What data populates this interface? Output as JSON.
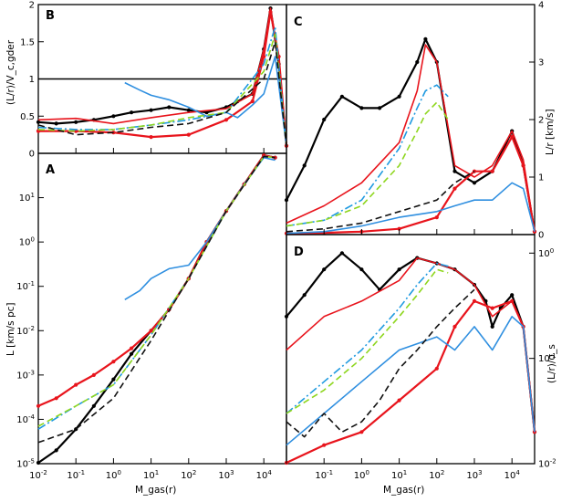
{
  "figure_title": "",
  "colors": {
    "black": "#000000",
    "red": "#e8141c",
    "blue": "#2f8fe0",
    "cyan_dash": "#1f9ae0",
    "green_dash": "#8ed61e",
    "black_dash": "#111111"
  },
  "chart_data": [
    {
      "panel": "B",
      "type": "line",
      "title": "",
      "xlabel": "",
      "ylabel": "(L/r)/V_c,gder",
      "xscale": "log",
      "xlim": [
        0.01,
        40000
      ],
      "ylim": [
        0,
        2
      ],
      "yticks": [
        "0",
        "0.5",
        "1",
        "1.5",
        "2"
      ],
      "reference_line": 1,
      "series": [
        {
          "name": "black-dots",
          "style": "solid-dots",
          "color": "#000000",
          "x": [
            0.01,
            0.03,
            0.1,
            0.3,
            1,
            3,
            10,
            30,
            100,
            300,
            1000,
            2000,
            5000,
            10000,
            15000,
            25000,
            40000
          ],
          "y": [
            0.42,
            0.4,
            0.42,
            0.45,
            0.5,
            0.55,
            0.58,
            0.62,
            0.58,
            0.55,
            0.62,
            0.7,
            0.8,
            1.4,
            1.95,
            1.2,
            0.1
          ]
        },
        {
          "name": "red-solid",
          "style": "solid",
          "color": "#e8141c",
          "x": [
            0.01,
            0.1,
            1,
            10,
            100,
            1000,
            5000,
            10000,
            15000,
            25000,
            40000
          ],
          "y": [
            0.45,
            0.47,
            0.4,
            0.48,
            0.55,
            0.6,
            0.8,
            1.4,
            1.95,
            1.3,
            0.1
          ]
        },
        {
          "name": "red-dots",
          "style": "solid-dots",
          "color": "#e8141c",
          "x": [
            0.01,
            0.1,
            1,
            10,
            100,
            1000,
            5000,
            10000,
            15000,
            25000,
            40000
          ],
          "y": [
            0.3,
            0.3,
            0.28,
            0.22,
            0.25,
            0.45,
            0.7,
            1.3,
            1.9,
            1.3,
            0.1
          ]
        },
        {
          "name": "blue-solid",
          "style": "solid",
          "color": "#2f8fe0",
          "x": [
            2,
            5,
            10,
            30,
            100,
            300,
            1000,
            2000,
            5000,
            10000,
            20000,
            40000
          ],
          "y": [
            0.95,
            0.85,
            0.78,
            0.72,
            0.62,
            0.5,
            0.55,
            0.48,
            0.65,
            0.8,
            1.3,
            0.1
          ]
        },
        {
          "name": "cyan-dashdot",
          "style": "dashdot",
          "color": "#1f9ae0",
          "x": [
            0.01,
            0.1,
            1,
            10,
            100,
            1000,
            10000,
            20000,
            40000
          ],
          "y": [
            0.35,
            0.32,
            0.32,
            0.38,
            0.45,
            0.55,
            1.2,
            1.7,
            0.1
          ]
        },
        {
          "name": "green-dash",
          "style": "dash",
          "color": "#8ed61e",
          "x": [
            0.01,
            0.1,
            1,
            10,
            100,
            1000,
            10000,
            20000,
            40000
          ],
          "y": [
            0.32,
            0.3,
            0.32,
            0.38,
            0.48,
            0.55,
            1.1,
            1.6,
            0.1
          ]
        },
        {
          "name": "black-dash",
          "style": "dash",
          "color": "#111111",
          "x": [
            0.01,
            0.1,
            1,
            10,
            100,
            1000,
            10000,
            20000,
            40000
          ],
          "y": [
            0.38,
            0.25,
            0.28,
            0.35,
            0.4,
            0.55,
            1.0,
            1.5,
            0.1
          ]
        }
      ]
    },
    {
      "panel": "A",
      "type": "line",
      "title": "",
      "xlabel": "M_gas(r)",
      "ylabel": "L [km/s pc]",
      "xscale": "log",
      "yscale": "log",
      "xlim": [
        0.01,
        40000
      ],
      "ylim": [
        1e-05,
        100
      ],
      "xticks": [
        "10^-2",
        "10^-1",
        "10^0",
        "10^1",
        "10^2",
        "10^3",
        "10^4"
      ],
      "yticks": [
        "10^-5",
        "10^-4",
        "10^-3",
        "10^-2",
        "10^-1",
        "10^0",
        "10^1"
      ],
      "series": [
        {
          "name": "black-dots",
          "style": "solid-dots",
          "color": "#000000",
          "x": [
            0.01,
            0.03,
            0.1,
            0.3,
            1,
            3,
            10,
            30,
            100,
            300,
            1000,
            3000,
            10000,
            20000
          ],
          "y": [
            8e-06,
            2e-05,
            6e-05,
            0.0002,
            0.0008,
            0.003,
            0.01,
            0.03,
            0.15,
            1,
            5,
            20,
            90,
            80
          ]
        },
        {
          "name": "red-dots",
          "style": "solid-dots",
          "color": "#e8141c",
          "x": [
            0.01,
            0.03,
            0.1,
            0.3,
            1,
            3,
            10,
            30,
            100,
            300,
            1000,
            3000,
            10000,
            20000
          ],
          "y": [
            0.0002,
            0.0003,
            0.0006,
            0.001,
            0.002,
            0.004,
            0.01,
            0.03,
            0.15,
            1,
            5,
            20,
            90,
            80
          ]
        },
        {
          "name": "blue-solid",
          "style": "solid",
          "color": "#2f8fe0",
          "x": [
            2,
            5,
            10,
            30,
            100,
            300,
            1000,
            3000,
            10000,
            20000
          ],
          "y": [
            0.05,
            0.08,
            0.15,
            0.25,
            0.3,
            1,
            5,
            20,
            80,
            70
          ]
        },
        {
          "name": "cyan-dashdot",
          "style": "dashdot",
          "color": "#1f9ae0",
          "x": [
            0.01,
            0.1,
            1,
            10,
            100,
            1000,
            10000,
            20000
          ],
          "y": [
            6e-05,
            0.0002,
            0.0006,
            0.008,
            0.15,
            5,
            85,
            80
          ]
        },
        {
          "name": "green-dash",
          "style": "dash",
          "color": "#8ed61e",
          "x": [
            0.01,
            0.1,
            1,
            10,
            100,
            1000,
            10000,
            20000
          ],
          "y": [
            7e-05,
            0.0002,
            0.0006,
            0.008,
            0.15,
            5,
            85,
            80
          ]
        },
        {
          "name": "black-dash",
          "style": "dash",
          "color": "#111111",
          "x": [
            0.01,
            0.1,
            1,
            10,
            100,
            1000,
            10000,
            20000
          ],
          "y": [
            3e-05,
            6e-05,
            0.0003,
            0.006,
            0.15,
            5,
            85,
            80
          ]
        }
      ]
    },
    {
      "panel": "C",
      "type": "line",
      "title": "",
      "xlabel": "",
      "ylabel": "L/r [km/s]",
      "xscale": "log",
      "xlim": [
        0.01,
        40000
      ],
      "ylim": [
        0,
        4
      ],
      "yticks": [
        "0",
        "1",
        "2",
        "3",
        "4"
      ],
      "series": [
        {
          "name": "black-dots",
          "style": "solid-dots",
          "color": "#000000",
          "x": [
            0.01,
            0.03,
            0.1,
            0.3,
            1,
            3,
            10,
            30,
            50,
            100,
            300,
            1000,
            3000,
            10000,
            20000,
            40000
          ],
          "y": [
            0.6,
            1.2,
            2.0,
            2.4,
            2.2,
            2.2,
            2.4,
            3.0,
            3.4,
            3.0,
            1.1,
            0.9,
            1.1,
            1.8,
            1.2,
            0.05
          ]
        },
        {
          "name": "red-solid",
          "style": "solid",
          "color": "#e8141c",
          "x": [
            0.01,
            0.1,
            1,
            10,
            30,
            50,
            100,
            300,
            1000,
            3000,
            10000,
            20000,
            40000
          ],
          "y": [
            0.2,
            0.5,
            0.9,
            1.6,
            2.5,
            3.3,
            3.0,
            1.2,
            1.0,
            1.2,
            1.8,
            1.3,
            0.05
          ]
        },
        {
          "name": "red-dots",
          "style": "solid-dots",
          "color": "#e8141c",
          "x": [
            0.01,
            0.1,
            1,
            10,
            100,
            300,
            1000,
            3000,
            10000,
            20000,
            40000
          ],
          "y": [
            0.02,
            0.03,
            0.05,
            0.1,
            0.3,
            0.8,
            1.1,
            1.1,
            1.7,
            1.2,
            0.05
          ]
        },
        {
          "name": "blue-solid",
          "style": "solid",
          "color": "#2f8fe0",
          "x": [
            0.01,
            0.1,
            1,
            10,
            100,
            300,
            1000,
            3000,
            10000,
            20000,
            40000
          ],
          "y": [
            0.02,
            0.05,
            0.15,
            0.3,
            0.4,
            0.5,
            0.6,
            0.6,
            0.9,
            0.8,
            0.05
          ]
        },
        {
          "name": "cyan-dashdot",
          "style": "dashdot",
          "color": "#1f9ae0",
          "x": [
            0.01,
            0.1,
            1,
            10,
            30,
            50,
            100,
            200
          ],
          "y": [
            0.15,
            0.25,
            0.6,
            1.5,
            2.2,
            2.5,
            2.6,
            2.4
          ]
        },
        {
          "name": "green-dash",
          "style": "dash",
          "color": "#8ed61e",
          "x": [
            0.01,
            0.1,
            1,
            10,
            30,
            50,
            100,
            200
          ],
          "y": [
            0.15,
            0.25,
            0.5,
            1.2,
            1.8,
            2.1,
            2.3,
            2.0
          ]
        },
        {
          "name": "black-dash",
          "style": "dash",
          "color": "#111111",
          "x": [
            0.01,
            0.1,
            1,
            10,
            100,
            300,
            1000
          ],
          "y": [
            0.05,
            0.1,
            0.2,
            0.4,
            0.6,
            0.9,
            1.1
          ]
        }
      ]
    },
    {
      "panel": "D",
      "type": "line",
      "title": "",
      "xlabel": "M_gas(r)",
      "ylabel": "(L/r)/σ_s",
      "xscale": "log",
      "yscale": "log",
      "xlim": [
        0.01,
        40000
      ],
      "ylim": [
        0.01,
        1.5
      ],
      "xticks": [
        "10^-1",
        "10^0",
        "10^1",
        "10^2",
        "10^3",
        "10^4"
      ],
      "yticks": [
        "10^-2",
        "10^-1",
        "10^0"
      ],
      "series": [
        {
          "name": "black-dots",
          "style": "solid-dots",
          "color": "#000000",
          "x": [
            0.01,
            0.03,
            0.1,
            0.3,
            1,
            3,
            10,
            30,
            100,
            300,
            1000,
            2000,
            3000,
            5000,
            10000,
            20000,
            40000
          ],
          "y": [
            0.25,
            0.4,
            0.7,
            1.0,
            0.7,
            0.45,
            0.7,
            0.9,
            0.8,
            0.7,
            0.5,
            0.35,
            0.2,
            0.3,
            0.4,
            0.2,
            0.02
          ]
        },
        {
          "name": "red-solid",
          "style": "solid",
          "color": "#e8141c",
          "x": [
            0.01,
            0.1,
            1,
            10,
            30,
            100,
            300,
            1000,
            3000,
            10000,
            20000,
            40000
          ],
          "y": [
            0.12,
            0.25,
            0.35,
            0.55,
            0.9,
            0.8,
            0.7,
            0.5,
            0.25,
            0.35,
            0.2,
            0.02
          ]
        },
        {
          "name": "red-dots",
          "style": "solid-dots",
          "color": "#e8141c",
          "x": [
            0.01,
            0.1,
            1,
            10,
            100,
            300,
            1000,
            3000,
            10000,
            20000,
            40000
          ],
          "y": [
            0.01,
            0.015,
            0.02,
            0.04,
            0.08,
            0.2,
            0.35,
            0.3,
            0.35,
            0.2,
            0.02
          ]
        },
        {
          "name": "blue-solid",
          "style": "solid",
          "color": "#2f8fe0",
          "x": [
            0.01,
            0.1,
            1,
            10,
            100,
            300,
            1000,
            3000,
            10000,
            20000,
            40000
          ],
          "y": [
            0.015,
            0.03,
            0.06,
            0.12,
            0.16,
            0.12,
            0.2,
            0.12,
            0.25,
            0.2,
            0.02
          ]
        },
        {
          "name": "cyan-dashdot",
          "style": "dashdot",
          "color": "#1f9ae0",
          "x": [
            0.01,
            0.1,
            1,
            10,
            30,
            100,
            200
          ],
          "y": [
            0.03,
            0.06,
            0.12,
            0.3,
            0.5,
            0.8,
            0.75
          ]
        },
        {
          "name": "green-dash",
          "style": "dash",
          "color": "#8ed61e",
          "x": [
            0.01,
            0.1,
            1,
            10,
            30,
            100,
            200
          ],
          "y": [
            0.03,
            0.05,
            0.1,
            0.25,
            0.4,
            0.7,
            0.65
          ]
        },
        {
          "name": "black-dash",
          "style": "dash",
          "color": "#111111",
          "x": [
            0.01,
            0.03,
            0.1,
            0.3,
            1,
            3,
            10,
            30,
            100,
            300,
            1000
          ],
          "y": [
            0.025,
            0.018,
            0.03,
            0.02,
            0.025,
            0.04,
            0.08,
            0.12,
            0.2,
            0.3,
            0.45
          ]
        }
      ]
    }
  ]
}
